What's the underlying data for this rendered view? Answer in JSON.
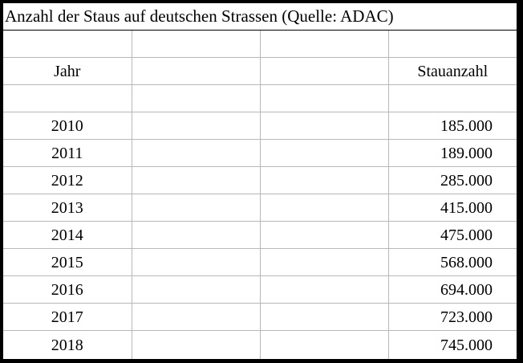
{
  "title": "Anzahl der Staus auf deutschen Strassen (Quelle: ADAC)",
  "headers": {
    "year": "Jahr",
    "value": "Stauanzahl"
  },
  "rows": [
    {
      "year": "2010",
      "value": "185.000"
    },
    {
      "year": "2011",
      "value": "189.000"
    },
    {
      "year": "2012",
      "value": "285.000"
    },
    {
      "year": "2013",
      "value": "415.000"
    },
    {
      "year": "2014",
      "value": "475.000"
    },
    {
      "year": "2015",
      "value": "568.000"
    },
    {
      "year": "2016",
      "value": "694.000"
    },
    {
      "year": "2017",
      "value": "723.000"
    },
    {
      "year": "2018",
      "value": "745.000"
    }
  ],
  "colors": {
    "frame": "#000000",
    "background": "#ffffff",
    "grid": "#b8b8b8"
  }
}
